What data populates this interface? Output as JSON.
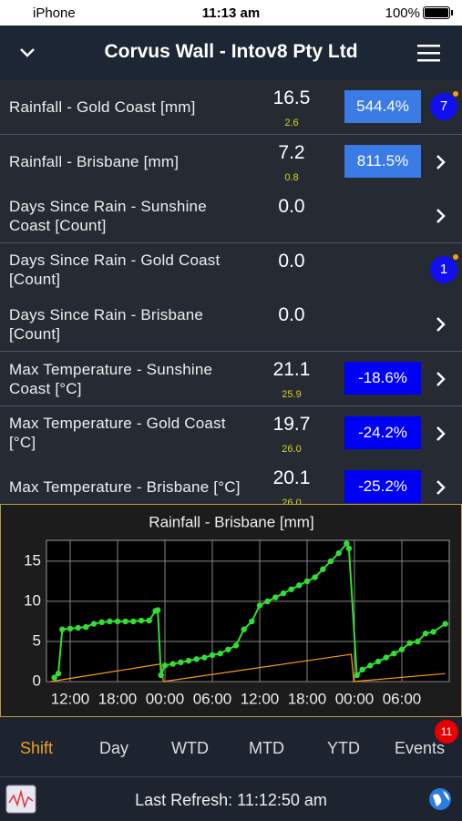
{
  "status_bar": {
    "carrier": "iPhone",
    "time": "11:13 am",
    "battery": "100%"
  },
  "header": {
    "title": "Corvus Wall - Intov8 Pty Ltd"
  },
  "rows": [
    {
      "label": "Rainfall - Gold Coast [mm]",
      "value": "16.5",
      "target": "2.6",
      "change": "544.4%",
      "badge": "7"
    },
    {
      "label": "Rainfall - Brisbane [mm]",
      "value": "7.2",
      "target": "0.8",
      "change": "811.5%"
    },
    {
      "label": "Days Since Rain - Sunshine Coast [Count]",
      "value": "0.0"
    },
    {
      "label": "Days Since Rain - Gold Coast [Count]",
      "value": "0.0",
      "badge": "1"
    },
    {
      "label": "Days Since Rain - Brisbane [Count]",
      "value": "0.0"
    },
    {
      "label": "Max Temperature - Sunshine Coast [°C]",
      "value": "21.1",
      "target": "25.9",
      "change": "-18.6%"
    },
    {
      "label": "Max Temperature - Gold Coast [°C]",
      "value": "19.7",
      "target": "26.0",
      "change": "-24.2%"
    },
    {
      "label": "Max Temperature - Brisbane [°C]",
      "value": "20.1",
      "target": "26.0",
      "change": "-25.2%"
    }
  ],
  "chart_data": {
    "type": "line",
    "title": "Rainfall - Brisbane [mm]",
    "xlim": [
      9,
      60
    ],
    "ylim": [
      0,
      17.6
    ],
    "xticks": [
      {
        "value": 12,
        "label": "12:00"
      },
      {
        "value": 18,
        "label": "18:00"
      },
      {
        "value": 24,
        "label": "00:00"
      },
      {
        "value": 30,
        "label": "06:00"
      },
      {
        "value": 36,
        "label": "12:00"
      },
      {
        "value": 42,
        "label": "18:00"
      },
      {
        "value": 48,
        "label": "00:00"
      },
      {
        "value": 54,
        "label": "06:00"
      }
    ],
    "yticks": [
      0,
      5,
      10,
      15
    ],
    "grid": true,
    "series": [
      {
        "color": "#ff9a1a",
        "markers": false,
        "x": [
          9.5,
          23.5,
          23.8,
          47.6,
          47.9,
          59.5
        ],
        "values": [
          0,
          2.2,
          0,
          3.4,
          0,
          1.0
        ]
      },
      {
        "color": "#33dd33",
        "markers": true,
        "x": [
          10,
          10.5,
          11,
          12,
          13,
          14,
          15,
          16,
          17,
          18,
          19,
          20,
          21,
          22,
          22.8,
          23.1,
          23.5,
          24,
          25,
          26,
          27,
          28,
          29,
          30,
          31,
          32,
          33,
          34,
          35,
          36,
          37,
          38,
          39,
          40,
          41,
          42,
          43,
          44,
          45,
          46,
          47,
          47.3,
          48.3,
          49,
          50,
          51,
          52,
          53,
          54,
          55,
          56,
          57,
          58,
          59.5
        ],
        "values": [
          0.5,
          1.0,
          6.5,
          6.6,
          6.7,
          6.8,
          7.2,
          7.4,
          7.5,
          7.5,
          7.5,
          7.5,
          7.6,
          7.6,
          8.8,
          8.9,
          0.8,
          2.0,
          2.2,
          2.4,
          2.6,
          2.8,
          3.0,
          3.3,
          3.5,
          4.0,
          4.5,
          6.5,
          7.5,
          9.5,
          10.0,
          10.5,
          11.0,
          11.5,
          12.0,
          12.5,
          13.0,
          14.0,
          15.0,
          16.0,
          17.2,
          16.6,
          0.8,
          1.5,
          2.0,
          2.5,
          3.0,
          3.5,
          4.0,
          4.8,
          5.0,
          6.0,
          6.2,
          7.2
        ]
      }
    ]
  },
  "tabs": {
    "items": [
      "Shift",
      "Day",
      "WTD",
      "MTD",
      "YTD",
      "Events"
    ],
    "events_badge": "11"
  },
  "footer": {
    "refresh": "Last Refresh: 11:12:50 am"
  }
}
